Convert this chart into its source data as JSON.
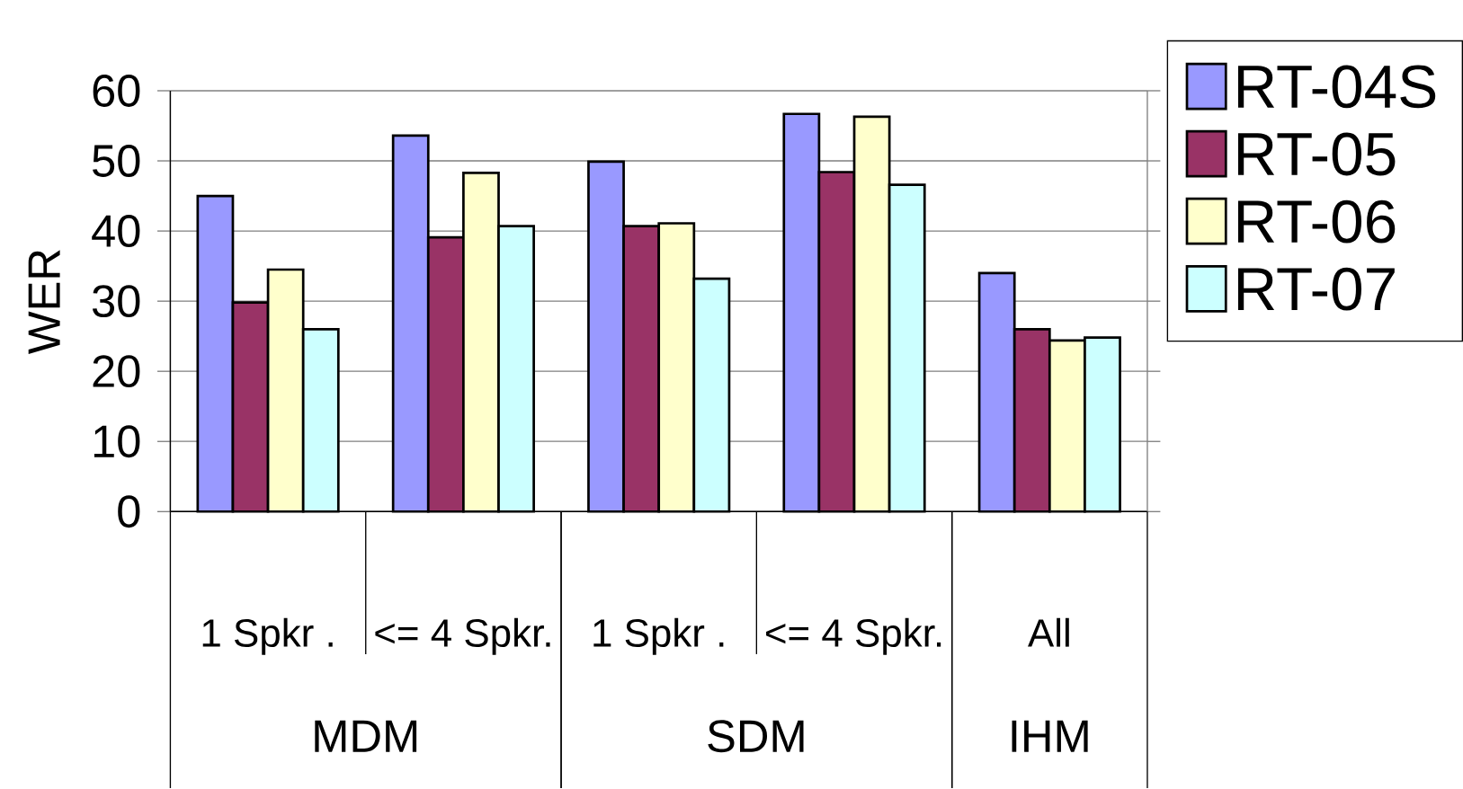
{
  "chart_data": {
    "type": "bar",
    "ylabel": "WER",
    "categories": [
      "1 Spkr   .",
      "<= 4 Spkr.",
      "1 Spkr   .",
      "<= 4 Spkr.",
      "All"
    ],
    "series": [
      {
        "name": "RT-04S",
        "color": "#9999ff",
        "values": [
          45,
          53.6,
          49.9,
          56.7,
          34
        ]
      },
      {
        "name": "RT-05",
        "color": "#993366",
        "values": [
          29.8,
          39.1,
          40.7,
          48.4,
          26
        ]
      },
      {
        "name": "RT-06",
        "color": "#ffffcc",
        "values": [
          34.5,
          48.3,
          41.1,
          56.3,
          24.4
        ]
      },
      {
        "name": "RT-07",
        "color": "#ccffff",
        "values": [
          26,
          40.7,
          33.2,
          46.6,
          24.8
        ]
      }
    ],
    "ylim": [
      0,
      60
    ],
    "yticks": [
      0,
      10,
      20,
      30,
      40,
      50,
      60
    ],
    "grid": "y",
    "legend": "top right",
    "annotations": [
      "MDM",
      "SDM",
      "IHM"
    ]
  }
}
